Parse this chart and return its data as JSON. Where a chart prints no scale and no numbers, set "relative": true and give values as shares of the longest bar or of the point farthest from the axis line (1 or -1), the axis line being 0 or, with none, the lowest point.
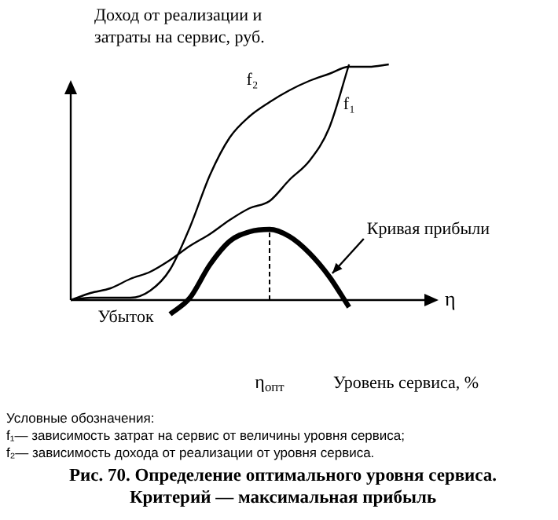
{
  "chart_data": {
    "type": "line",
    "relative": true,
    "title": "Рис. 70. Определение оптимального уровня сервиса. Критерий — максимальная прибыль",
    "ylabel": "Доход от реализации и затраты на сервис, руб.",
    "xlabel": "Уровень сервиса, %",
    "categories": [
      null,
      null,
      null,
      null,
      null,
      null,
      null,
      null,
      null,
      null,
      null,
      null,
      null,
      null,
      null,
      null,
      null,
      null
    ],
    "series": [
      {
        "name": "f₂",
        "color": "#000000",
        "values": [
          0,
          0.01,
          0.01,
          0.01,
          0.04,
          0.13,
          0.31,
          0.53,
          0.69,
          0.78,
          0.84,
          0.89,
          0.93,
          0.96,
          0.99,
          0.99,
          1,
          null
        ]
      },
      {
        "name": "f₁",
        "color": "#000000",
        "values": [
          0,
          0.03,
          0.05,
          0.09,
          0.12,
          0.17,
          0.23,
          0.28,
          0.34,
          0.39,
          0.42,
          0.51,
          0.59,
          0.73,
          1,
          null,
          null,
          null
        ]
      },
      {
        "name": "Кривая прибыли",
        "color": "#000000",
        "values": [
          null,
          null,
          null,
          null,
          null,
          -0.06,
          0.01,
          0.15,
          0.25,
          0.29,
          0.3,
          0.27,
          0.2,
          0.1,
          -0.03,
          null,
          null,
          null
        ]
      }
    ],
    "annotations": [
      "η",
      "Убыток",
      "η$_{опт}$",
      "Условные обозначения:",
      "f₁— зависимость затрат на сервис от величины уровня сервиса;",
      "f₂— зависимость дохода от реализации от уровня сервиса."
    ]
  }
}
